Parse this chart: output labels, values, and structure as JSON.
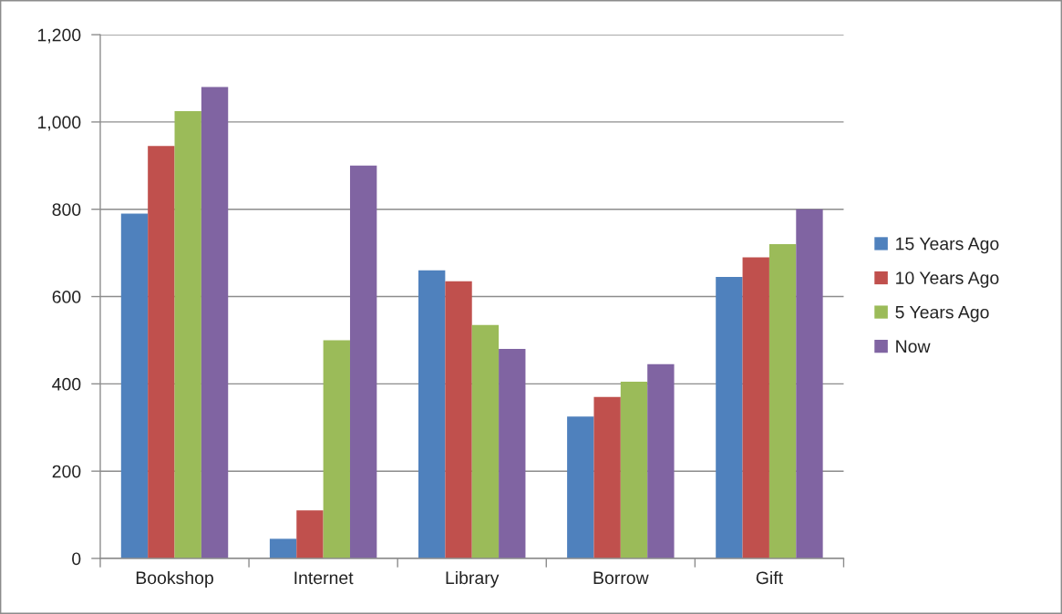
{
  "chart_data": {
    "type": "bar",
    "categories": [
      "Bookshop",
      "Internet",
      "Library",
      "Borrow",
      "Gift"
    ],
    "series": [
      {
        "name": "15 Years Ago",
        "color": "#4f81bd",
        "values": [
          790,
          45,
          660,
          325,
          645
        ]
      },
      {
        "name": "10 Years Ago",
        "color": "#c0504d",
        "values": [
          945,
          110,
          635,
          370,
          690
        ]
      },
      {
        "name": "5 Years Ago",
        "color": "#9bbb59",
        "values": [
          1025,
          500,
          535,
          405,
          720
        ]
      },
      {
        "name": "Now",
        "color": "#8064a2",
        "values": [
          1080,
          900,
          480,
          445,
          800
        ]
      }
    ],
    "ylim": [
      0,
      1200
    ],
    "yticks": [
      0,
      200,
      400,
      600,
      800,
      {
        "value": 1000,
        "label": "1,000"
      },
      {
        "value": 1200,
        "label": "1,200"
      }
    ],
    "grid": "y",
    "legend": "right"
  }
}
